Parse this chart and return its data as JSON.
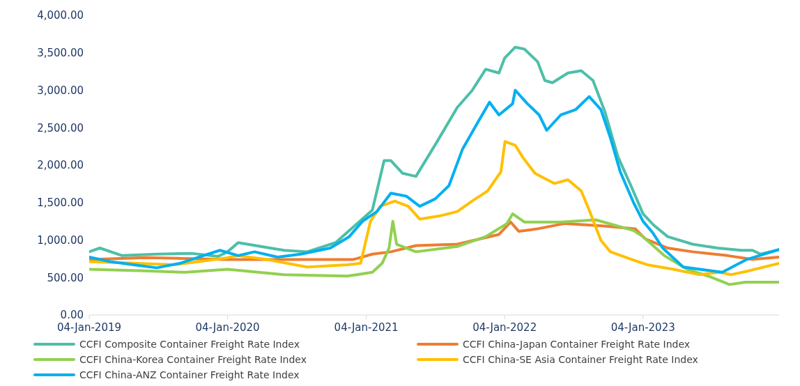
{
  "chart_data": {
    "type": "line",
    "xlim": [
      "2019-01-04",
      "2023-12-29"
    ],
    "xticks": [
      {
        "value": "2019-01-04",
        "label": "04-Jan-2019"
      },
      {
        "value": "2020-01-04",
        "label": "04-Jan-2020"
      },
      {
        "value": "2021-01-04",
        "label": "04-Jan-2021"
      },
      {
        "value": "2022-01-04",
        "label": "04-Jan-2022"
      },
      {
        "value": "2023-01-04",
        "label": "04-Jan-2023"
      }
    ],
    "ylim": [
      0,
      4000
    ],
    "yticks": [
      {
        "value": 0,
        "label": "0.00"
      },
      {
        "value": 500,
        "label": "500.00"
      },
      {
        "value": 1000,
        "label": "1,000.00"
      },
      {
        "value": 1500,
        "label": "1,500.00"
      },
      {
        "value": 2000,
        "label": "2,000.00"
      },
      {
        "value": 2500,
        "label": "2,500.00"
      },
      {
        "value": 3000,
        "label": "3,000.00"
      },
      {
        "value": 3500,
        "label": "3,500.00"
      },
      {
        "value": 4000,
        "label": "4,000.00"
      }
    ],
    "grid": false,
    "legend": "bottom",
    "marker": "none",
    "line_style": "solid",
    "series": [
      {
        "name": "CCFI Composite Container Freight Rate Index",
        "color": "#4dbfa8",
        "x": [
          "2019-01-04",
          "2019-02-01",
          "2019-04-01",
          "2019-07-01",
          "2019-10-01",
          "2019-12-10",
          "2020-01-04",
          "2020-02-01",
          "2020-04-01",
          "2020-06-01",
          "2020-08-01",
          "2020-10-15",
          "2021-01-20",
          "2021-02-20",
          "2021-03-10",
          "2021-04-10",
          "2021-05-15",
          "2021-07-10",
          "2021-09-01",
          "2021-10-10",
          "2021-11-15",
          "2021-12-20",
          "2022-01-04",
          "2022-02-01",
          "2022-02-25",
          "2022-04-01",
          "2022-04-20",
          "2022-05-10",
          "2022-06-20",
          "2022-07-25",
          "2022-08-25",
          "2022-09-25",
          "2022-10-30",
          "2022-12-05",
          "2023-01-04",
          "2023-02-01",
          "2023-03-10",
          "2023-05-15",
          "2023-07-20",
          "2023-09-20",
          "2023-10-20",
          "2023-11-10",
          "2023-12-29"
        ],
        "values": [
          843,
          893,
          792,
          812,
          822,
          782,
          843,
          965,
          914,
          863,
          843,
          965,
          1400,
          2060,
          2060,
          1890,
          1850,
          2315,
          2770,
          2995,
          3280,
          3230,
          3430,
          3575,
          3550,
          3380,
          3130,
          3100,
          3230,
          3260,
          3130,
          2720,
          2110,
          1705,
          1350,
          1200,
          1045,
          944,
          893,
          863,
          863,
          812,
          873
        ]
      },
      {
        "name": "CCFI China-Japan Container Freight Rate Index",
        "color": "#ed7d31",
        "x": [
          "2019-01-04",
          "2019-06-01",
          "2020-01-04",
          "2020-12-01",
          "2021-01-20",
          "2021-03-10",
          "2021-05-15",
          "2021-09-01",
          "2021-12-20",
          "2022-01-20",
          "2022-02-10",
          "2022-03-30",
          "2022-06-10",
          "2022-09-20",
          "2022-12-15",
          "2023-01-10",
          "2023-03-10",
          "2023-05-15",
          "2023-08-15",
          "2023-10-20",
          "2023-12-29"
        ],
        "values": [
          740,
          765,
          740,
          740,
          812,
          843,
          925,
          944,
          1075,
          1240,
          1117,
          1148,
          1220,
          1188,
          1148,
          1015,
          893,
          843,
          792,
          741,
          772
        ]
      },
      {
        "name": "CCFI China-Korea Container Freight Rate Index",
        "color": "#92d050",
        "x": [
          "2019-01-04",
          "2019-06-01",
          "2019-09-15",
          "2020-01-04",
          "2020-06-01",
          "2020-11-15",
          "2021-01-20",
          "2021-02-15",
          "2021-03-05",
          "2021-03-15",
          "2021-03-25",
          "2021-05-15",
          "2021-09-01",
          "2021-11-15",
          "2022-01-10",
          "2022-01-25",
          "2022-02-25",
          "2022-06-01",
          "2022-09-01",
          "2022-10-20",
          "2022-12-10",
          "2023-01-04",
          "2023-03-01",
          "2023-05-01",
          "2023-07-01",
          "2023-08-20",
          "2023-10-01",
          "2023-12-29"
        ],
        "values": [
          609,
          589,
          569,
          609,
          538,
          518,
          569,
          690,
          893,
          1250,
          944,
          843,
          914,
          1045,
          1218,
          1350,
          1240,
          1240,
          1270,
          1200,
          1127,
          1045,
          792,
          609,
          508,
          406,
          437,
          437
        ]
      },
      {
        "name": "CCFI China-SE Asia Container Freight Rate Index",
        "color": "#ffc000",
        "x": [
          "2019-01-04",
          "2019-05-01",
          "2019-08-15",
          "2020-01-01",
          "2020-02-01",
          "2020-04-15",
          "2020-08-01",
          "2020-11-15",
          "2020-12-20",
          "2021-01-15",
          "2021-02-10",
          "2021-03-20",
          "2021-04-25",
          "2021-05-25",
          "2021-07-15",
          "2021-09-01",
          "2021-10-10",
          "2021-11-20",
          "2021-12-25",
          "2022-01-05",
          "2022-02-01",
          "2022-02-20",
          "2022-03-25",
          "2022-05-15",
          "2022-06-20",
          "2022-07-25",
          "2022-08-15",
          "2022-09-15",
          "2022-10-10",
          "2022-12-05",
          "2023-01-15",
          "2023-03-25",
          "2023-06-01",
          "2023-07-25",
          "2023-08-25",
          "2023-10-10",
          "2023-12-29"
        ],
        "values": [
          711,
          690,
          670,
          761,
          792,
          741,
          640,
          670,
          690,
          1250,
          1450,
          1520,
          1450,
          1280,
          1320,
          1380,
          1520,
          1655,
          1910,
          2315,
          2265,
          2110,
          1890,
          1755,
          1805,
          1655,
          1400,
          995,
          843,
          741,
          670,
          609,
          538,
          569,
          538,
          589,
          690
        ]
      },
      {
        "name": "CCFI China-ANZ Container Freight Rate Index",
        "color": "#00b0f0",
        "x": [
          "2019-01-04",
          "2019-03-01",
          "2019-05-01",
          "2019-07-01",
          "2019-09-01",
          "2019-11-01",
          "2019-12-15",
          "2020-02-01",
          "2020-03-15",
          "2020-05-15",
          "2020-07-15",
          "2020-10-01",
          "2020-11-20",
          "2020-12-25",
          "2021-02-01",
          "2021-03-10",
          "2021-04-20",
          "2021-05-25",
          "2021-07-05",
          "2021-08-10",
          "2021-09-15",
          "2021-10-25",
          "2021-11-25",
          "2021-12-20",
          "2022-01-25",
          "2022-02-01",
          "2022-03-05",
          "2022-04-05",
          "2022-04-25",
          "2022-06-01",
          "2022-07-10",
          "2022-08-15",
          "2022-09-15",
          "2022-10-10",
          "2022-11-05",
          "2022-12-10",
          "2023-01-04",
          "2023-01-30",
          "2023-02-25",
          "2023-04-20",
          "2023-07-01",
          "2023-08-01",
          "2023-10-05",
          "2023-12-29"
        ],
        "values": [
          772,
          711,
          670,
          629,
          690,
          792,
          863,
          792,
          843,
          772,
          812,
          893,
          1045,
          1250,
          1380,
          1625,
          1585,
          1450,
          1550,
          1725,
          2215,
          2570,
          2840,
          2670,
          2820,
          3000,
          2820,
          2670,
          2465,
          2670,
          2740,
          2915,
          2740,
          2365,
          1910,
          1500,
          1250,
          1095,
          893,
          640,
          590,
          570,
          741,
          873
        ]
      }
    ]
  }
}
